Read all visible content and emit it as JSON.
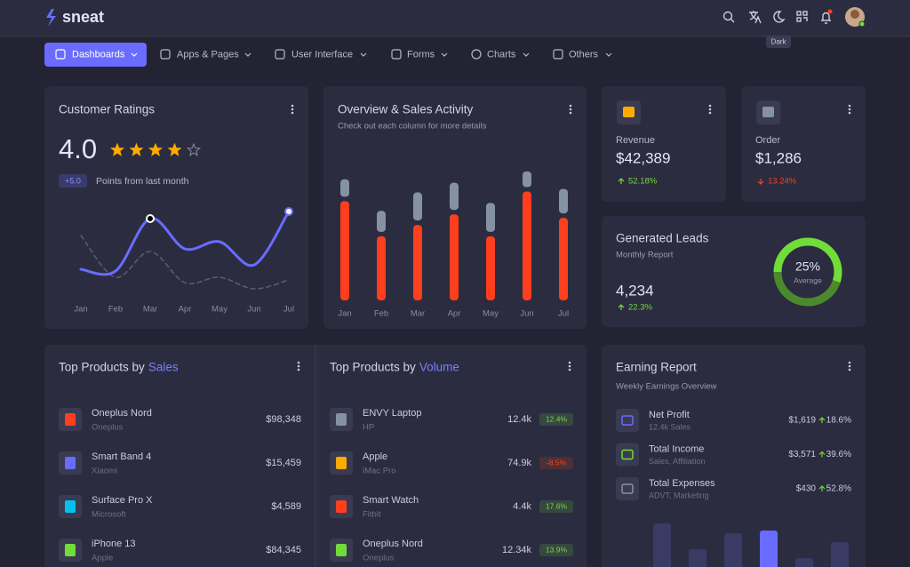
{
  "brand": "sneat",
  "tooltip": "Dark",
  "nav": [
    "Dashboards",
    "Apps & Pages",
    "User Interface",
    "Forms",
    "Charts",
    "Others"
  ],
  "ratings": {
    "title": "Customer Ratings",
    "score": "4.0",
    "badge": "+5.0",
    "note": "Points from last month",
    "stars_filled": 4,
    "stars_total": 5,
    "chart": {
      "type": "line",
      "categories": [
        "Jan",
        "Feb",
        "Mar",
        "Apr",
        "May",
        "Jun",
        "Jul"
      ],
      "ylim": [
        0,
        100
      ],
      "series": [
        {
          "color": "#696cff",
          "values": [
            27,
            25,
            84,
            50,
            58,
            32,
            92
          ]
        },
        {
          "color": "#5c5d72",
          "dashed": true,
          "values": [
            65,
            18,
            47,
            12,
            18,
            5,
            15
          ]
        }
      ]
    }
  },
  "sales_activity": {
    "title": "Overview & Sales Activity",
    "subtitle": "Check out each column for more details",
    "chart": {
      "type": "bar",
      "categories": [
        "Jan",
        "Feb",
        "Mar",
        "Apr",
        "May",
        "Jun",
        "Jul"
      ],
      "ylim": [
        0,
        160
      ],
      "series": [
        {
          "color": "#ff3e1d",
          "values": [
            113,
            73,
            86,
            98,
            73,
            124,
            94
          ]
        },
        {
          "color": "#8592a3",
          "values": [
            25,
            29,
            37,
            36,
            38,
            23,
            33
          ]
        }
      ]
    }
  },
  "stats": [
    {
      "label": "Revenue",
      "value": "$42,389",
      "change": "52.18%",
      "direction": "up",
      "icon_color": "#ffab00"
    },
    {
      "label": "Order",
      "value": "$1,286",
      "change": "13.24%",
      "direction": "down",
      "icon_color": "#8592a3"
    }
  ],
  "leads": {
    "title": "Generated Leads",
    "subtitle": "Monthly Report",
    "value": "4,234",
    "change": "22.3%",
    "donut": {
      "type": "pie",
      "center_label": "25%",
      "center_sub": "Average",
      "values": [
        55,
        45
      ],
      "colors": [
        "#71dd37",
        "#4b8a2c"
      ]
    }
  },
  "products_sales": {
    "title_prefix": "Top Products by",
    "title_highlight": "Sales",
    "items": [
      {
        "name": "Oneplus Nord",
        "brand": "Oneplus",
        "price": "$98,348",
        "icon_color": "#ff3e1d"
      },
      {
        "name": "Smart Band 4",
        "brand": "Xiaomi",
        "price": "$15,459",
        "icon_color": "#696cff"
      },
      {
        "name": "Surface Pro X",
        "brand": "Microsoft",
        "price": "$4,589",
        "icon_color": "#03c3ec"
      },
      {
        "name": "iPhone 13",
        "brand": "Apple",
        "price": "$84,345",
        "icon_color": "#71dd37"
      }
    ]
  },
  "products_volume": {
    "title_prefix": "Top Products by",
    "title_highlight": "Volume",
    "items": [
      {
        "name": "ENVY Laptop",
        "brand": "HP",
        "volume": "12.4k",
        "change": "12.4%",
        "trend": "up",
        "icon_color": "#8592a3"
      },
      {
        "name": "Apple",
        "brand": "iMac Pro",
        "volume": "74.9k",
        "change": "-8.5%",
        "trend": "down",
        "icon_color": "#ffab00"
      },
      {
        "name": "Smart Watch",
        "brand": "Fitbit",
        "volume": "4.4k",
        "change": "17.6%",
        "trend": "up",
        "icon_color": "#ff3e1d"
      },
      {
        "name": "Oneplus Nord",
        "brand": "Oneplus",
        "volume": "12.34k",
        "change": "13.9%",
        "trend": "up",
        "icon_color": "#71dd37"
      }
    ]
  },
  "earning": {
    "title": "Earning Report",
    "subtitle": "Weekly Earnings Overview",
    "rows": [
      {
        "name": "Net Profit",
        "sub": "12.4k Sales",
        "amount": "$1,619",
        "change": "18.6%",
        "icon_color": "#696cff"
      },
      {
        "name": "Total Income",
        "sub": "Sales, Affiliation",
        "amount": "$3,571",
        "change": "39.6%",
        "icon_color": "#71dd37"
      },
      {
        "name": "Total Expenses",
        "sub": "ADVT, Marketing",
        "amount": "$430",
        "change": "52.8%",
        "icon_color": "#8592a3"
      }
    ],
    "chart": {
      "type": "bar",
      "ylim": [
        0,
        60
      ],
      "values": [
        49,
        20,
        38,
        41,
        10,
        28
      ],
      "colors": [
        "#3a3b64",
        "#3a3b64",
        "#3a3b64",
        "#696cff",
        "#3a3b64",
        "#3a3b64"
      ]
    }
  }
}
